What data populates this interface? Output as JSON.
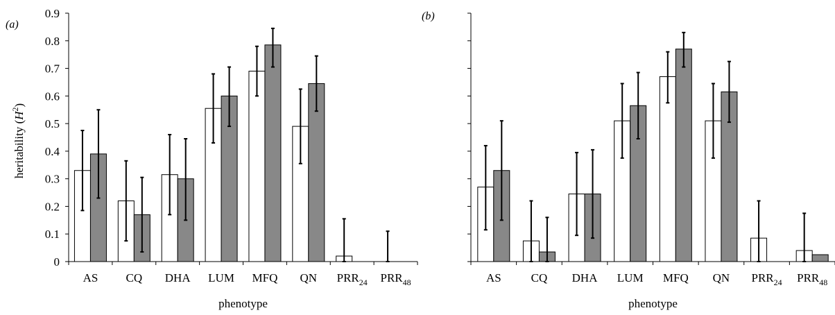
{
  "chart_data": [
    {
      "type": "bar",
      "panel_label": "(a)",
      "ylabel": "heritability",
      "ylabel_symbol": "H",
      "ylabel_exp": "2",
      "xlabel": "phenotype",
      "ylim": [
        0,
        0.9
      ],
      "yticks": [
        "0",
        "0.1",
        "0.2",
        "0.3",
        "0.4",
        "0.5",
        "0.6",
        "0.7",
        "0.8",
        "0.9"
      ],
      "categories": [
        {
          "base": "AS",
          "sub": ""
        },
        {
          "base": "CQ",
          "sub": ""
        },
        {
          "base": "DHA",
          "sub": ""
        },
        {
          "base": "LUM",
          "sub": ""
        },
        {
          "base": "MFQ",
          "sub": ""
        },
        {
          "base": "QN",
          "sub": ""
        },
        {
          "base": "PRR",
          "sub": "24"
        },
        {
          "base": "PRR",
          "sub": "48"
        }
      ],
      "series": [
        {
          "fill": "#ffffff",
          "values": [
            0.33,
            0.22,
            0.315,
            0.555,
            0.69,
            0.49,
            0.02,
            0.0
          ],
          "err_low": [
            0.185,
            0.075,
            0.17,
            0.43,
            0.6,
            0.355,
            0.0,
            0.0
          ],
          "err_high": [
            0.475,
            0.365,
            0.46,
            0.68,
            0.78,
            0.625,
            0.155,
            0.11
          ]
        },
        {
          "fill": "#888888",
          "values": [
            0.39,
            0.17,
            0.3,
            0.6,
            0.785,
            0.645,
            0.0,
            0.0
          ],
          "err_low": [
            0.23,
            0.035,
            0.15,
            0.49,
            0.705,
            0.545,
            null,
            null
          ],
          "err_high": [
            0.55,
            0.305,
            0.445,
            0.705,
            0.845,
            0.745,
            null,
            null
          ]
        }
      ],
      "grid": false,
      "legend": false
    },
    {
      "type": "bar",
      "panel_label": "(b)",
      "ylabel": "",
      "xlabel": "phenotype",
      "ylim": [
        0,
        0.9
      ],
      "yticks": [],
      "categories": [
        {
          "base": "AS",
          "sub": ""
        },
        {
          "base": "CQ",
          "sub": ""
        },
        {
          "base": "DHA",
          "sub": ""
        },
        {
          "base": "LUM",
          "sub": ""
        },
        {
          "base": "MFQ",
          "sub": ""
        },
        {
          "base": "QN",
          "sub": ""
        },
        {
          "base": "PRR",
          "sub": "24"
        },
        {
          "base": "PRR",
          "sub": "48"
        }
      ],
      "series": [
        {
          "fill": "#ffffff",
          "values": [
            0.27,
            0.075,
            0.245,
            0.51,
            0.67,
            0.51,
            0.085,
            0.04
          ],
          "err_low": [
            0.115,
            0.0,
            0.095,
            0.375,
            0.575,
            0.375,
            0.0,
            0.0
          ],
          "err_high": [
            0.42,
            0.22,
            0.395,
            0.645,
            0.76,
            0.645,
            0.22,
            0.175
          ]
        },
        {
          "fill": "#888888",
          "values": [
            0.33,
            0.035,
            0.245,
            0.565,
            0.77,
            0.615,
            0.0,
            0.025
          ],
          "err_low": [
            0.15,
            0.0,
            0.085,
            0.445,
            0.705,
            0.505,
            null,
            null
          ],
          "err_high": [
            0.51,
            0.16,
            0.405,
            0.685,
            0.83,
            0.725,
            null,
            null
          ]
        }
      ],
      "grid": false,
      "legend": false
    }
  ]
}
